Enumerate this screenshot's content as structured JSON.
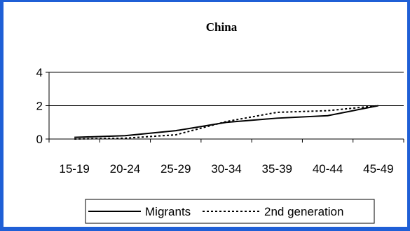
{
  "chart_data": {
    "type": "line",
    "title": "China",
    "xlabel": "",
    "ylabel": "",
    "categories": [
      "15-19",
      "20-24",
      "25-29",
      "30-34",
      "35-39",
      "40-44",
      "45-49"
    ],
    "ylim": [
      0,
      4
    ],
    "yticks": [
      0,
      2,
      4
    ],
    "grid": true,
    "legend": "bottom",
    "series": [
      {
        "name": "Migrants",
        "values": [
          0.1,
          0.2,
          0.5,
          1.0,
          1.25,
          1.4,
          2.0
        ],
        "style": "solid",
        "color": "#000000"
      },
      {
        "name": "2nd generation",
        "values": [
          0.0,
          0.05,
          0.25,
          1.05,
          1.6,
          1.7,
          2.0
        ],
        "style": "dotted",
        "color": "#000000"
      }
    ]
  }
}
